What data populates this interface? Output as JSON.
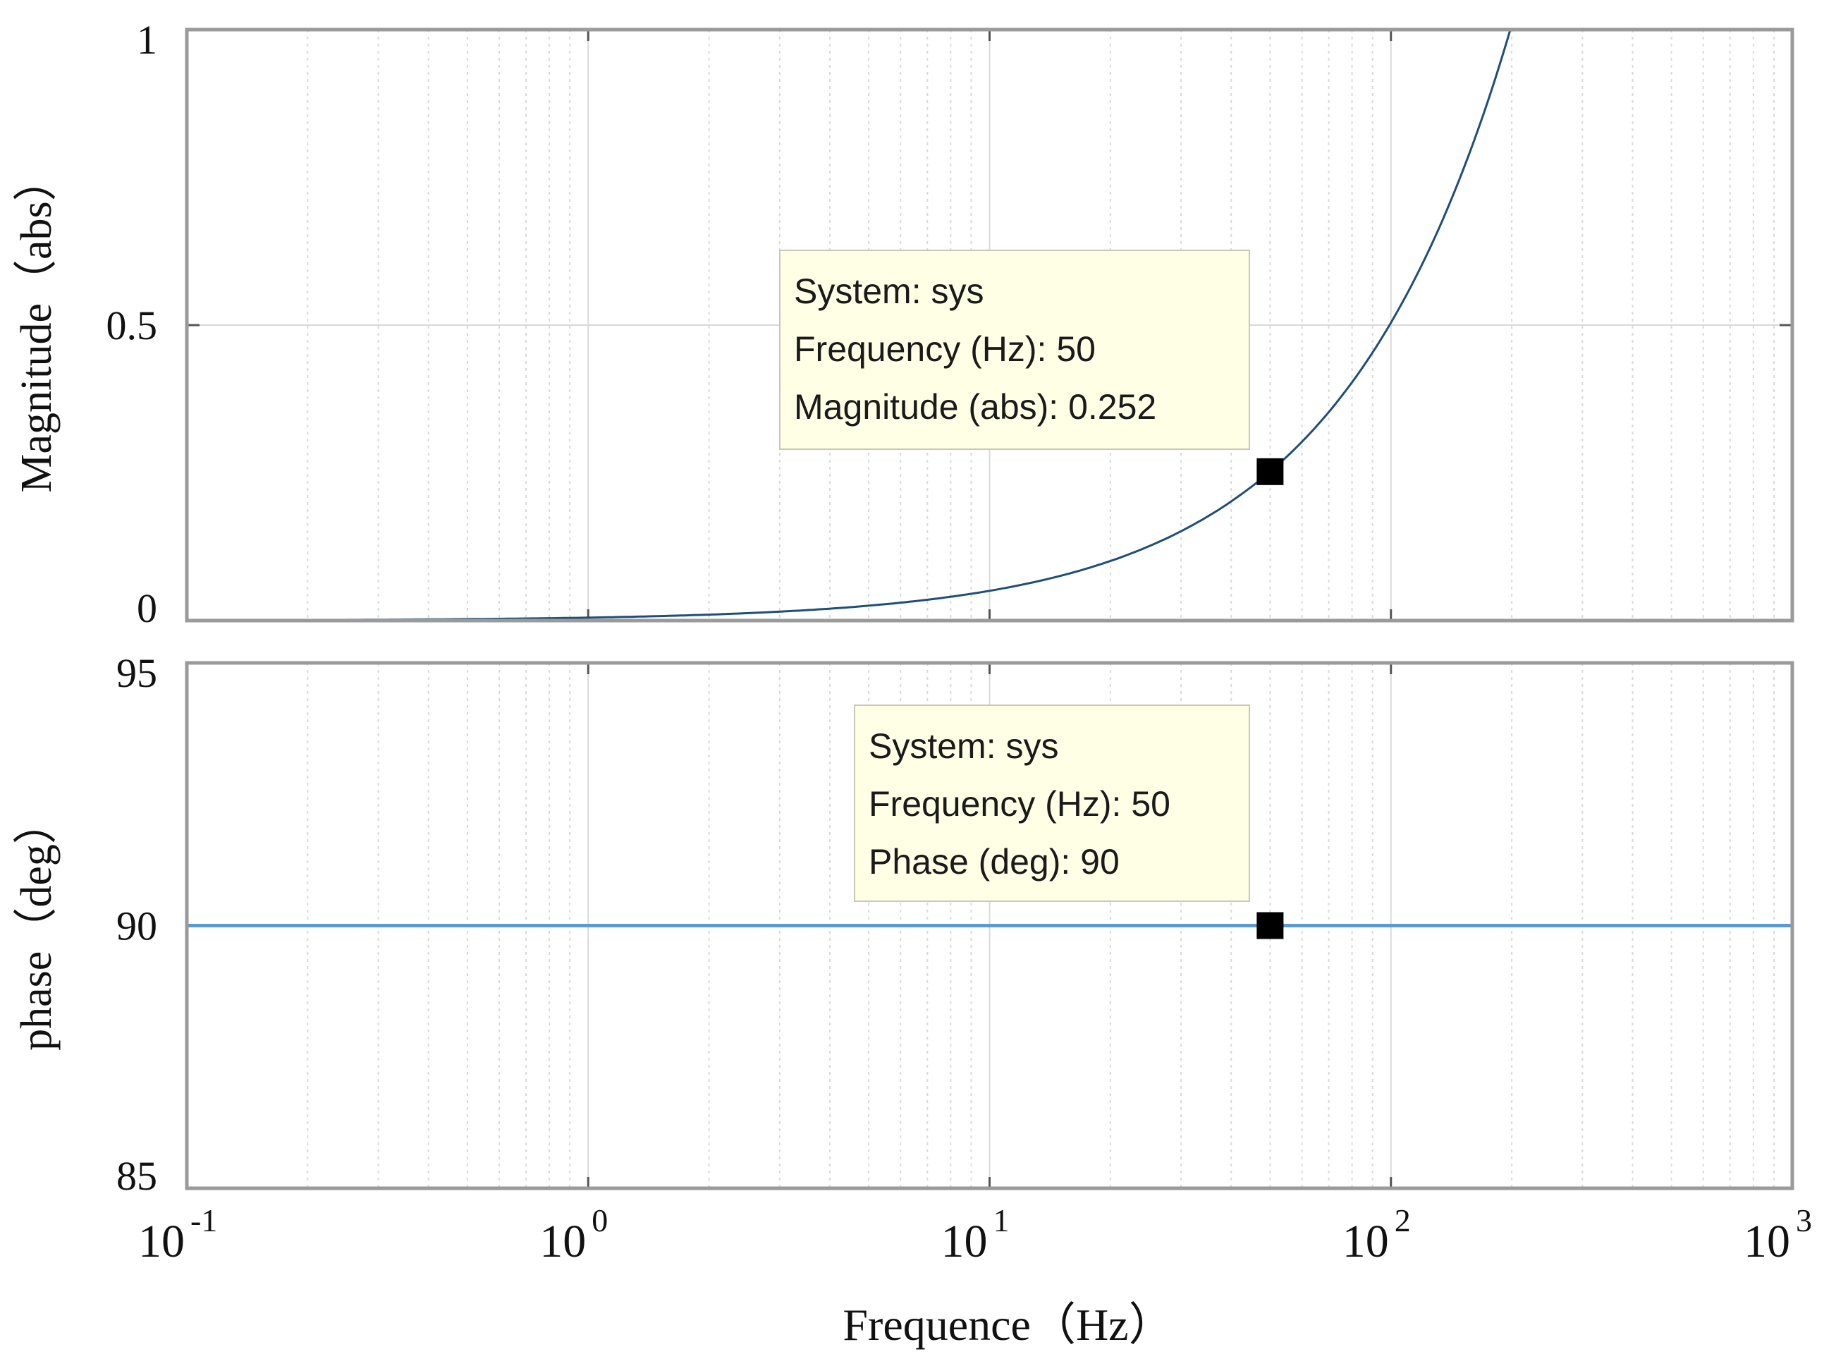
{
  "chart_data": [
    {
      "type": "line",
      "name": "magnitude",
      "ylabel": "Magnitude（abs）",
      "xscale": "log",
      "xlim": [
        0.1,
        1000
      ],
      "ylim": [
        0,
        1
      ],
      "yticks": [
        {
          "value": 0,
          "label": "0"
        },
        {
          "value": 0.5,
          "label": "0.5"
        },
        {
          "value": 1,
          "label": "1"
        }
      ],
      "grid": true,
      "series": [
        {
          "name": "sys",
          "color": "#1f4e79",
          "model": "magnitude = f / 198.4",
          "x": [
            0.1,
            0.3,
            1,
            2,
            3,
            5,
            10,
            20,
            30,
            50,
            70,
            100,
            150,
            198.4
          ],
          "y": [
            0.0005,
            0.0015,
            0.005,
            0.01,
            0.015,
            0.025,
            0.05,
            0.1,
            0.151,
            0.252,
            0.353,
            0.504,
            0.756,
            1.0
          ]
        }
      ],
      "datatip": {
        "lines": [
          "System: sys",
          "Frequency (Hz): 50",
          "Magnitude (abs): 0.252"
        ],
        "x": 50,
        "y": 0.252
      }
    },
    {
      "type": "line",
      "name": "phase",
      "ylabel": "phase（deg）",
      "xscale": "log",
      "xlim": [
        0.1,
        1000
      ],
      "ylim": [
        85,
        95
      ],
      "yticks": [
        {
          "value": 85,
          "label": "85"
        },
        {
          "value": 90,
          "label": "90"
        },
        {
          "value": 95,
          "label": "95"
        }
      ],
      "grid": true,
      "series": [
        {
          "name": "sys",
          "color": "#5b9bd5",
          "x": [
            0.1,
            1000
          ],
          "y": [
            90,
            90
          ]
        }
      ],
      "datatip": {
        "lines": [
          "System: sys",
          "Frequency (Hz): 50",
          "Phase (deg): 90"
        ],
        "x": 50,
        "y": 90
      }
    }
  ],
  "x_axis": {
    "xlabel": "Frequence（Hz）",
    "ticks": [
      {
        "value": 0.1,
        "base": "10",
        "exp": "-1"
      },
      {
        "value": 1,
        "base": "10",
        "exp": "0"
      },
      {
        "value": 10,
        "base": "10",
        "exp": "1"
      },
      {
        "value": 100,
        "base": "10",
        "exp": "2"
      },
      {
        "value": 1000,
        "base": "10",
        "exp": "3"
      }
    ]
  },
  "colors": {
    "datatip_bg": "#ffffe6",
    "datatip_border": "#c8c8b4",
    "grid": "#d9d9d9",
    "axis": "#9a9a9a"
  }
}
